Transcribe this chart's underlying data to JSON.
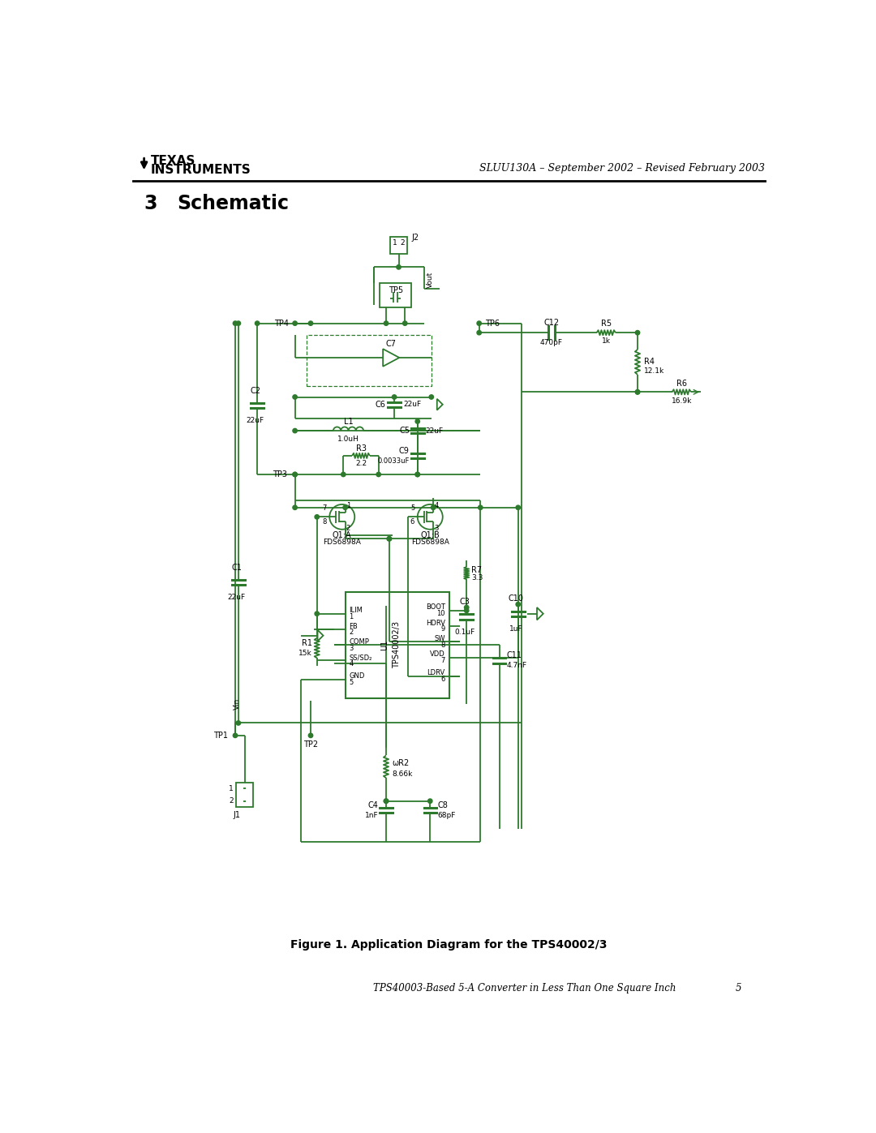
{
  "bg_color": "#ffffff",
  "line_color": "#2d7a2d",
  "text_color": "#000000",
  "fig_width": 10.8,
  "fig_height": 13.97,
  "title_text": "SLUU130A – September 2002 – Revised February 2003",
  "section_number": "3",
  "section_title": "Schematic",
  "figure_caption": "Figure 1. Application Diagram for the TPS40002/3",
  "footer_text": "TPS40003-Based 5-A Converter in Less Than One Square Inch",
  "footer_page": "5"
}
